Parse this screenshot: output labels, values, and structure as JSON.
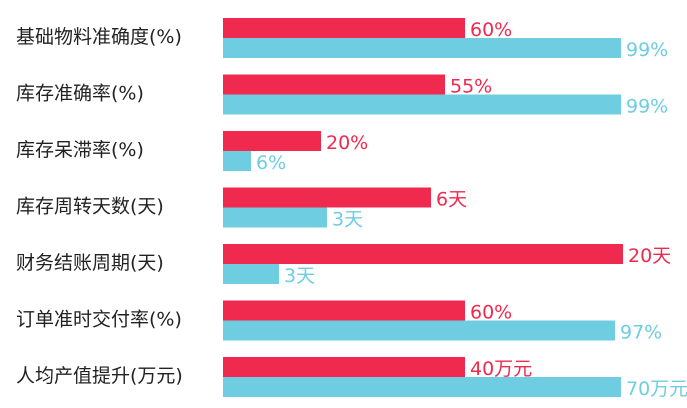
{
  "chart_data": {
    "type": "bar",
    "orientation": "horizontal",
    "colors": {
      "before": "#f0294f",
      "after": "#6ecde0"
    },
    "categories": [
      "基础物料准确度(%)",
      "库存准确率(%)",
      "库存呆滞率(%)",
      "库存周转天数(天)",
      "财务结账周期(天)",
      "订单准时交付率(%)",
      "人均产值提升(万元)"
    ],
    "series": [
      {
        "values": [
          60,
          55,
          20,
          6,
          20,
          60,
          40
        ],
        "labels": [
          "60%",
          "55%",
          "20%",
          "6天",
          "20天",
          "60%",
          "40万元"
        ]
      },
      {
        "values": [
          99,
          99,
          6,
          3,
          3,
          97,
          70
        ],
        "labels": [
          "99%",
          "99%",
          "6%",
          "3天",
          "3天",
          "97%",
          "70万元"
        ]
      }
    ],
    "bar_fraction": [
      [
        0.605,
        0.995
      ],
      [
        0.555,
        0.995
      ],
      [
        0.245,
        0.07
      ],
      [
        0.52,
        0.26
      ],
      [
        1.0,
        0.14
      ],
      [
        0.605,
        0.98
      ],
      [
        0.605,
        0.995
      ]
    ],
    "grid": false,
    "legend": "none"
  }
}
